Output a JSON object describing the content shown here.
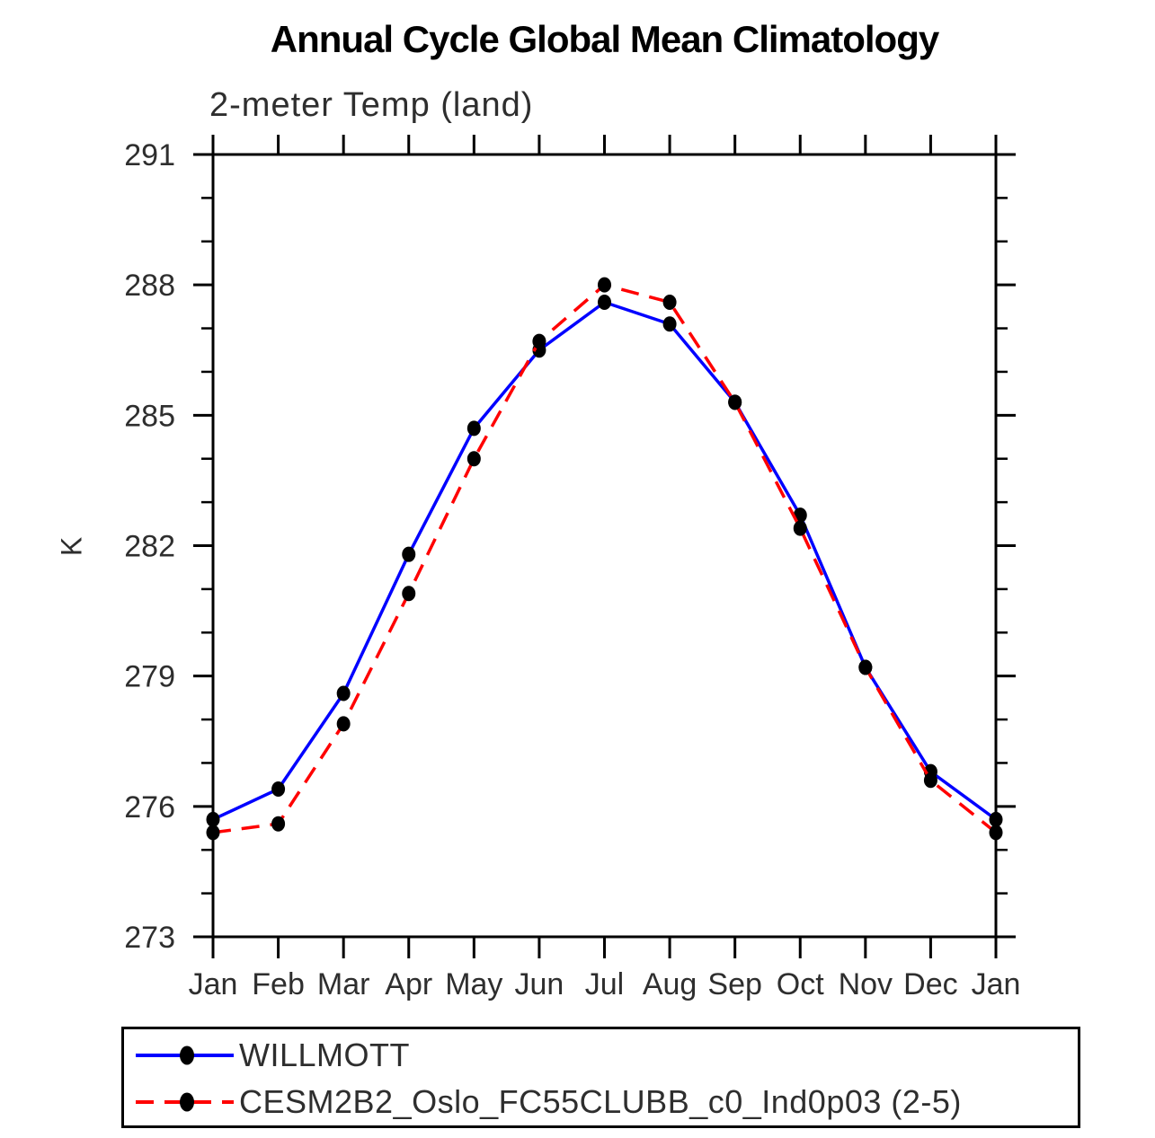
{
  "title": "Annual Cycle Global Mean Climatology",
  "subtitle": "2-meter Temp (land)",
  "colors": {
    "willmott_line": "#0000ff",
    "cesm_line": "#ff0000",
    "marker": "#000000",
    "axis": "#000000",
    "text": "#2e2e2e"
  },
  "chart_data": {
    "type": "line",
    "title": "Annual Cycle Global Mean Climatology",
    "subtitle": "2-meter Temp (land)",
    "xlabel": "",
    "ylabel": "K",
    "x_tick_labels": [
      "Jan",
      "Feb",
      "Mar",
      "Apr",
      "May",
      "Jun",
      "Jul",
      "Aug",
      "Sep",
      "Oct",
      "Nov",
      "Dec",
      "Jan"
    ],
    "y_major_ticks": [
      273,
      276,
      279,
      282,
      285,
      288,
      291
    ],
    "y_minor_step": 1,
    "ylim": [
      273,
      291
    ],
    "grid": "off",
    "legend_position": "bottom",
    "series": [
      {
        "name": "WILLMOTT",
        "color": "#0000ff",
        "style": "solid",
        "marker": "filled-circle",
        "values": [
          275.7,
          276.4,
          278.6,
          281.8,
          284.7,
          286.5,
          287.6,
          287.1,
          285.3,
          282.7,
          279.2,
          276.8,
          275.7
        ]
      },
      {
        "name": "CESM2B2_Oslo_FC55CLUBB_c0_Ind0p03 (2-5)",
        "color": "#ff0000",
        "style": "dashed",
        "marker": "filled-circle",
        "values": [
          275.4,
          275.6,
          277.9,
          280.9,
          284.0,
          286.7,
          288.0,
          287.6,
          285.3,
          282.4,
          279.2,
          276.6,
          275.4
        ]
      }
    ]
  }
}
